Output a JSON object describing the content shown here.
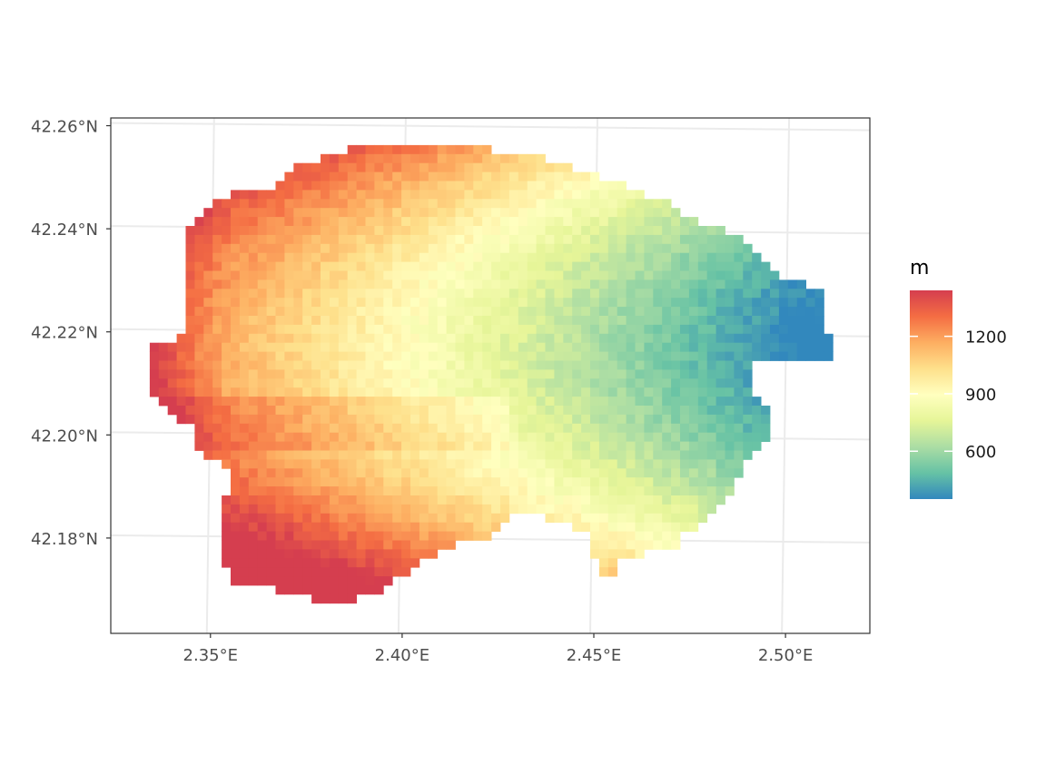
{
  "map": {
    "type": "raster",
    "x_axis": {
      "ticks": [
        "2.35°E",
        "2.40°E",
        "2.45°E",
        "2.50°E"
      ],
      "tick_values": [
        2.35,
        2.4,
        2.45,
        2.5
      ],
      "range": [
        2.324,
        2.522
      ]
    },
    "y_axis": {
      "ticks": [
        "42.18°N",
        "42.20°N",
        "42.22°N",
        "42.24°N",
        "42.26°N"
      ],
      "tick_values": [
        42.18,
        42.2,
        42.22,
        42.24,
        42.26
      ],
      "range": [
        42.1615,
        42.2615
      ]
    },
    "legend": {
      "title": "m",
      "labels": [
        "600",
        "900",
        "1200"
      ],
      "values": [
        600,
        900,
        1200
      ],
      "min": 350,
      "max": 1440,
      "position": "right"
    },
    "palette": [
      "#3288bd",
      "#66c2a5",
      "#abdda4",
      "#e6f598",
      "#ffffbf",
      "#fee08b",
      "#fdae61",
      "#f46d43",
      "#d53e4f"
    ],
    "panel_border": "#333333",
    "grid_color": "#ebebeb",
    "grid": true
  }
}
